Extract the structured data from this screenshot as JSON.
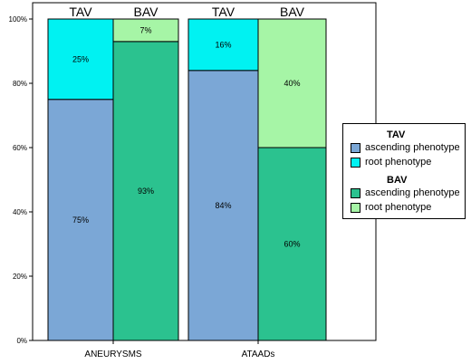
{
  "chart_data": {
    "type": "bar",
    "stacked": true,
    "ylim": [
      0,
      100
    ],
    "yticks": [
      0,
      20,
      40,
      60,
      80,
      100
    ],
    "ytick_suffix": "%",
    "groups": [
      {
        "label": "ANEURYSMS",
        "bars": [
          {
            "top_label": "TAV",
            "segments": [
              {
                "series": "TAV ascending phenotype",
                "value": 75,
                "label": "75%"
              },
              {
                "series": "TAV root phenotype",
                "value": 25,
                "label": "25%"
              }
            ]
          },
          {
            "top_label": "BAV",
            "segments": [
              {
                "series": "BAV ascending phenotype",
                "value": 93,
                "label": "93%"
              },
              {
                "series": "BAV root phenotype",
                "value": 7,
                "label": "7%"
              }
            ]
          }
        ]
      },
      {
        "label": "ATAADs",
        "bars": [
          {
            "top_label": "TAV",
            "segments": [
              {
                "series": "TAV ascending phenotype",
                "value": 84,
                "label": "84%"
              },
              {
                "series": "TAV root phenotype",
                "value": 16,
                "label": "16%"
              }
            ]
          },
          {
            "top_label": "BAV",
            "segments": [
              {
                "series": "BAV ascending phenotype",
                "value": 60,
                "label": "60%"
              },
              {
                "series": "BAV root phenotype",
                "value": 40,
                "label": "40%"
              }
            ]
          }
        ]
      }
    ],
    "series_colors": {
      "TAV ascending phenotype": "#7ba7d6",
      "TAV root phenotype": "#00f2f2",
      "BAV ascending phenotype": "#2bc28f",
      "BAV root phenotype": "#a6f5a6"
    },
    "legend": {
      "placement": "right",
      "sections": [
        {
          "title": "TAV",
          "items": [
            {
              "label": "ascending phenotype",
              "color": "#7ba7d6"
            },
            {
              "label": "root phenotype",
              "color": "#00f2f2"
            }
          ]
        },
        {
          "title": "BAV",
          "items": [
            {
              "label": "ascending phenotype",
              "color": "#2bc28f"
            },
            {
              "label": "root phenotype",
              "color": "#a6f5a6"
            }
          ]
        }
      ]
    }
  }
}
